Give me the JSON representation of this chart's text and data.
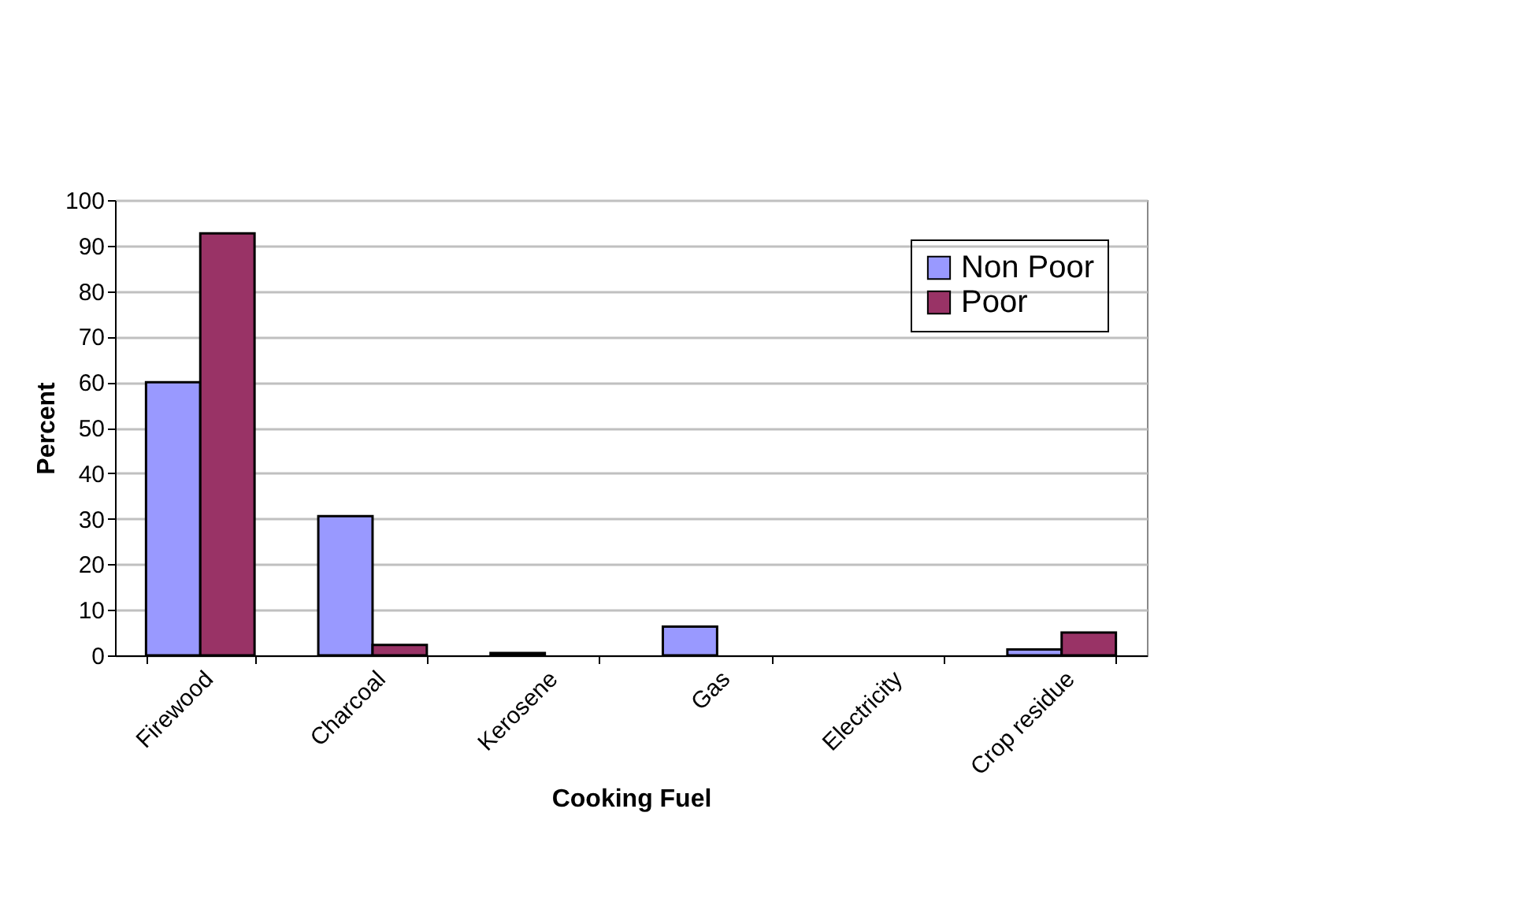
{
  "chart_data": {
    "type": "bar",
    "xlabel": "Cooking Fuel",
    "ylabel": "Percent",
    "categories": [
      "Firewood",
      "Charcoal",
      "Kerosene",
      "Gas",
      "Electricity",
      "Crop residue"
    ],
    "series": [
      {
        "name": "Non Poor",
        "color": "#9999ff",
        "values": [
          60,
          30.6,
          0.5,
          6.3,
          0,
          1.3
        ]
      },
      {
        "name": "Poor",
        "color": "#993366",
        "values": [
          92.7,
          2.3,
          0,
          0,
          0,
          5.0
        ]
      }
    ],
    "ylim": [
      0,
      100
    ],
    "yticks": [
      0,
      10,
      20,
      30,
      40,
      50,
      60,
      70,
      80,
      90,
      100
    ],
    "grid": "y",
    "legend": "top right"
  }
}
